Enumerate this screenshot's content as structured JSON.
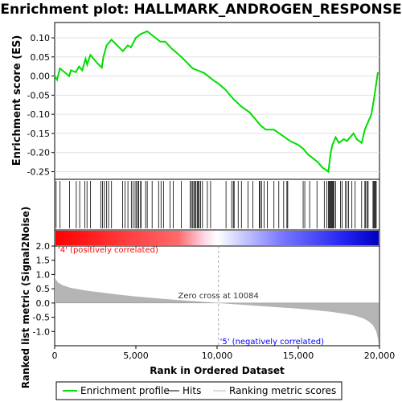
{
  "chart_data": {
    "type": "line",
    "title": "Enrichment plot: HALLMARK_ANDROGEN_RESPONSE",
    "colors": {
      "es_line": "#00dd00",
      "hit": "#000000",
      "metric_fill": "#b4b4b4",
      "positive": "#ff0000",
      "negative": "#0000ff"
    },
    "es_panel": {
      "ylabel": "Enrichment score (ES)",
      "ylim": [
        -0.27,
        0.14
      ],
      "yticks": [
        0.1,
        0.05,
        0.0,
        -0.05,
        -0.1,
        -0.15,
        -0.2,
        -0.25
      ],
      "ytick_labels": [
        "0.10",
        "0.05",
        "0.00",
        "-0.05",
        "-0.10",
        "-0.15",
        "-0.20",
        "-0.25"
      ],
      "grid": true,
      "x": [
        0,
        150,
        320,
        900,
        1000,
        1300,
        1500,
        1700,
        1900,
        2000,
        2200,
        2600,
        2900,
        3000,
        3200,
        3500,
        4200,
        4500,
        4700,
        5000,
        5300,
        5700,
        6200,
        6500,
        6800,
        7200,
        7800,
        8500,
        8800,
        9200,
        9800,
        10084,
        10500,
        11000,
        11500,
        12000,
        12300,
        12700,
        13000,
        13500,
        14000,
        14500,
        15000,
        15300,
        15600,
        15900,
        16200,
        16500,
        16700,
        16850,
        17000,
        17100,
        17300,
        17500,
        17800,
        18000,
        18200,
        18400,
        18600,
        18900,
        19100,
        19300,
        19500,
        19700,
        19900
      ],
      "y": [
        0.0,
        -0.01,
        0.02,
        0.0,
        0.015,
        0.01,
        0.025,
        0.015,
        0.045,
        0.03,
        0.055,
        0.035,
        0.022,
        0.05,
        0.08,
        0.095,
        0.065,
        0.08,
        0.075,
        0.1,
        0.11,
        0.117,
        0.1,
        0.09,
        0.09,
        0.072,
        0.05,
        0.02,
        0.015,
        0.008,
        -0.012,
        -0.02,
        -0.035,
        -0.06,
        -0.08,
        -0.095,
        -0.11,
        -0.13,
        -0.14,
        -0.14,
        -0.155,
        -0.17,
        -0.18,
        -0.19,
        -0.205,
        -0.215,
        -0.225,
        -0.24,
        -0.245,
        -0.25,
        -0.2,
        -0.18,
        -0.16,
        -0.175,
        -0.165,
        -0.17,
        -0.16,
        -0.15,
        -0.165,
        -0.175,
        -0.14,
        -0.12,
        -0.1,
        -0.05,
        0.01
      ]
    },
    "hits": [
      90,
      330,
      920,
      1330,
      1540,
      1860,
      1990,
      2210,
      2840,
      2950,
      3060,
      3200,
      3320,
      3500,
      4180,
      4330,
      4510,
      4720,
      4820,
      4950,
      5030,
      5120,
      5180,
      5290,
      5320,
      5600,
      5700,
      6000,
      6400,
      6550,
      6700,
      7100,
      7300,
      7800,
      8350,
      8420,
      8500,
      8570,
      8640,
      8700,
      8780,
      8840,
      8900,
      8980,
      9100,
      9400,
      9600,
      10550,
      10900,
      11000,
      11050,
      11300,
      11500,
      11900,
      12200,
      12600,
      12650,
      12750,
      12900,
      13100,
      13500,
      13800,
      14100,
      14300,
      14350,
      15300,
      15400,
      15700,
      16150,
      16600,
      16750,
      16850,
      16900,
      16950,
      17000,
      17050,
      17100,
      17150,
      17200,
      17300,
      17600,
      17700,
      17900,
      18000,
      18100,
      18300,
      18500,
      18900,
      19100,
      19150,
      19250,
      19300,
      19600,
      19650,
      19700,
      19750,
      19800
    ],
    "metric_panel": {
      "ylabel": "Ranked list metric (Signal2Noise)",
      "xlabel": "Rank in Ordered Dataset",
      "ylim": [
        -1.5,
        2.0
      ],
      "yticks": [
        2.0,
        1.5,
        1.0,
        0.5,
        0.0,
        -0.5,
        -1.0
      ],
      "ytick_labels": [
        "2.0",
        "1.5",
        "1.0",
        "0.5",
        "0.0",
        "-0.5",
        "-1.0"
      ],
      "xlim": [
        0,
        20000
      ],
      "xticks": [
        0,
        5000,
        10000,
        15000,
        20000
      ],
      "xtick_labels": [
        "0",
        "5,000",
        "10,000",
        "15,000",
        "20,000"
      ],
      "curve_x": [
        0,
        50,
        200,
        500,
        1000,
        2000,
        3000,
        4000,
        5000,
        6000,
        7000,
        8000,
        9000,
        10084,
        11000,
        12000,
        13000,
        14000,
        15000,
        16000,
        17000,
        18000,
        18500,
        19000,
        19300,
        19600,
        19800,
        19900,
        19950
      ],
      "curve_y": [
        1.0,
        0.85,
        0.72,
        0.62,
        0.53,
        0.43,
        0.36,
        0.29,
        0.23,
        0.18,
        0.13,
        0.09,
        0.05,
        0.0,
        -0.04,
        -0.08,
        -0.12,
        -0.16,
        -0.2,
        -0.25,
        -0.31,
        -0.39,
        -0.45,
        -0.54,
        -0.63,
        -0.78,
        -1.0,
        -1.25,
        -1.45
      ],
      "zero_cross": 10084,
      "zero_cross_label": "Zero cross at 10084",
      "pos_label": "'4' (positively correlated)",
      "neg_label": "'5' (negatively correlated)"
    },
    "legend": [
      "Enrichment profile",
      "Hits",
      "Ranking metric scores"
    ],
    "n_genes": 20000
  }
}
